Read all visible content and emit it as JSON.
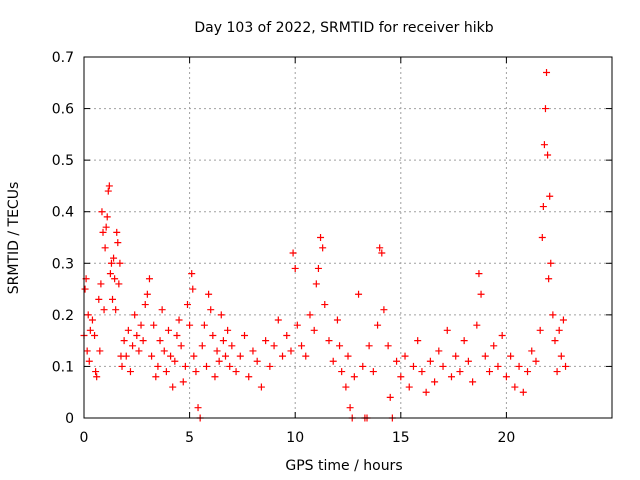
{
  "chart_data": {
    "type": "scatter",
    "title": "Day 103 of 2022, SRMTID for receiver hikb",
    "xlabel": "GPS time / hours",
    "ylabel": "SRMTID / TECUs",
    "xlim": [
      0,
      25
    ],
    "ylim": [
      0,
      0.7
    ],
    "x_ticks": [
      0,
      5,
      10,
      15,
      20
    ],
    "x_tick_labels": [
      "0",
      "5",
      "10",
      "15",
      "20"
    ],
    "y_ticks": [
      0,
      0.1,
      0.2,
      0.3,
      0.4,
      0.5,
      0.6,
      0.7
    ],
    "y_tick_labels": [
      "0",
      "0.1",
      "0.2",
      "0.3",
      "0.4",
      "0.5",
      "0.6",
      "0.7"
    ],
    "grid": true,
    "marker": "+",
    "colors": {
      "points": "#ff0000",
      "grid": "#a0a0a0",
      "axes": "#000000"
    },
    "series": [
      {
        "name": "SRMTID",
        "points": [
          [
            0.0,
            0.16
          ],
          [
            0.05,
            0.25
          ],
          [
            0.1,
            0.27
          ],
          [
            0.15,
            0.13
          ],
          [
            0.2,
            0.2
          ],
          [
            0.25,
            0.11
          ],
          [
            0.3,
            0.17
          ],
          [
            0.4,
            0.19
          ],
          [
            0.5,
            0.16
          ],
          [
            0.55,
            0.09
          ],
          [
            0.6,
            0.08
          ],
          [
            0.7,
            0.23
          ],
          [
            0.75,
            0.13
          ],
          [
            0.8,
            0.26
          ],
          [
            0.85,
            0.4
          ],
          [
            0.9,
            0.36
          ],
          [
            0.95,
            0.21
          ],
          [
            1.0,
            0.33
          ],
          [
            1.05,
            0.37
          ],
          [
            1.1,
            0.39
          ],
          [
            1.15,
            0.44
          ],
          [
            1.2,
            0.45
          ],
          [
            1.25,
            0.28
          ],
          [
            1.3,
            0.3
          ],
          [
            1.35,
            0.23
          ],
          [
            1.4,
            0.31
          ],
          [
            1.45,
            0.27
          ],
          [
            1.5,
            0.21
          ],
          [
            1.55,
            0.36
          ],
          [
            1.6,
            0.34
          ],
          [
            1.65,
            0.26
          ],
          [
            1.7,
            0.3
          ],
          [
            1.75,
            0.12
          ],
          [
            1.8,
            0.1
          ],
          [
            1.9,
            0.15
          ],
          [
            2.0,
            0.12
          ],
          [
            2.1,
            0.17
          ],
          [
            2.2,
            0.09
          ],
          [
            2.3,
            0.14
          ],
          [
            2.4,
            0.2
          ],
          [
            2.5,
            0.16
          ],
          [
            2.6,
            0.13
          ],
          [
            2.7,
            0.18
          ],
          [
            2.8,
            0.15
          ],
          [
            2.9,
            0.22
          ],
          [
            3.0,
            0.24
          ],
          [
            3.1,
            0.27
          ],
          [
            3.2,
            0.12
          ],
          [
            3.3,
            0.18
          ],
          [
            3.4,
            0.08
          ],
          [
            3.5,
            0.1
          ],
          [
            3.6,
            0.15
          ],
          [
            3.7,
            0.21
          ],
          [
            3.8,
            0.13
          ],
          [
            3.9,
            0.09
          ],
          [
            4.0,
            0.17
          ],
          [
            4.1,
            0.12
          ],
          [
            4.2,
            0.06
          ],
          [
            4.3,
            0.11
          ],
          [
            4.4,
            0.16
          ],
          [
            4.5,
            0.19
          ],
          [
            4.6,
            0.14
          ],
          [
            4.7,
            0.07
          ],
          [
            4.8,
            0.1
          ],
          [
            4.9,
            0.22
          ],
          [
            5.0,
            0.18
          ],
          [
            5.1,
            0.28
          ],
          [
            5.15,
            0.25
          ],
          [
            5.2,
            0.12
          ],
          [
            5.3,
            0.09
          ],
          [
            5.4,
            0.02
          ],
          [
            5.5,
            0.0
          ],
          [
            5.6,
            0.14
          ],
          [
            5.7,
            0.18
          ],
          [
            5.8,
            0.1
          ],
          [
            5.9,
            0.24
          ],
          [
            6.0,
            0.21
          ],
          [
            6.1,
            0.16
          ],
          [
            6.2,
            0.08
          ],
          [
            6.3,
            0.13
          ],
          [
            6.4,
            0.11
          ],
          [
            6.5,
            0.2
          ],
          [
            6.6,
            0.15
          ],
          [
            6.7,
            0.12
          ],
          [
            6.8,
            0.17
          ],
          [
            6.9,
            0.1
          ],
          [
            7.0,
            0.14
          ],
          [
            7.2,
            0.09
          ],
          [
            7.4,
            0.12
          ],
          [
            7.6,
            0.16
          ],
          [
            7.8,
            0.08
          ],
          [
            8.0,
            0.13
          ],
          [
            8.2,
            0.11
          ],
          [
            8.4,
            0.06
          ],
          [
            8.6,
            0.15
          ],
          [
            8.8,
            0.1
          ],
          [
            9.0,
            0.14
          ],
          [
            9.2,
            0.19
          ],
          [
            9.4,
            0.12
          ],
          [
            9.6,
            0.16
          ],
          [
            9.8,
            0.13
          ],
          [
            9.9,
            0.32
          ],
          [
            10.0,
            0.29
          ],
          [
            10.1,
            0.18
          ],
          [
            10.3,
            0.14
          ],
          [
            10.5,
            0.12
          ],
          [
            10.7,
            0.2
          ],
          [
            10.9,
            0.17
          ],
          [
            11.0,
            0.26
          ],
          [
            11.1,
            0.29
          ],
          [
            11.2,
            0.35
          ],
          [
            11.3,
            0.33
          ],
          [
            11.4,
            0.22
          ],
          [
            11.6,
            0.15
          ],
          [
            11.8,
            0.11
          ],
          [
            12.0,
            0.19
          ],
          [
            12.1,
            0.14
          ],
          [
            12.2,
            0.09
          ],
          [
            12.4,
            0.06
          ],
          [
            12.5,
            0.12
          ],
          [
            12.6,
            0.02
          ],
          [
            12.7,
            0.0
          ],
          [
            12.8,
            0.08
          ],
          [
            13.0,
            0.24
          ],
          [
            13.2,
            0.1
          ],
          [
            13.3,
            0.0
          ],
          [
            13.4,
            0.0
          ],
          [
            13.5,
            0.14
          ],
          [
            13.7,
            0.09
          ],
          [
            13.9,
            0.18
          ],
          [
            14.0,
            0.33
          ],
          [
            14.1,
            0.32
          ],
          [
            14.2,
            0.21
          ],
          [
            14.4,
            0.14
          ],
          [
            14.5,
            0.04
          ],
          [
            14.6,
            0.0
          ],
          [
            14.8,
            0.11
          ],
          [
            15.0,
            0.08
          ],
          [
            15.2,
            0.12
          ],
          [
            15.4,
            0.06
          ],
          [
            15.6,
            0.1
          ],
          [
            15.8,
            0.15
          ],
          [
            16.0,
            0.09
          ],
          [
            16.2,
            0.05
          ],
          [
            16.4,
            0.11
          ],
          [
            16.6,
            0.07
          ],
          [
            16.8,
            0.13
          ],
          [
            17.0,
            0.1
          ],
          [
            17.2,
            0.17
          ],
          [
            17.4,
            0.08
          ],
          [
            17.6,
            0.12
          ],
          [
            17.8,
            0.09
          ],
          [
            18.0,
            0.15
          ],
          [
            18.2,
            0.11
          ],
          [
            18.4,
            0.07
          ],
          [
            18.6,
            0.18
          ],
          [
            18.7,
            0.28
          ],
          [
            18.8,
            0.24
          ],
          [
            19.0,
            0.12
          ],
          [
            19.2,
            0.09
          ],
          [
            19.4,
            0.14
          ],
          [
            19.6,
            0.1
          ],
          [
            19.8,
            0.16
          ],
          [
            20.0,
            0.08
          ],
          [
            20.2,
            0.12
          ],
          [
            20.4,
            0.06
          ],
          [
            20.6,
            0.1
          ],
          [
            20.8,
            0.05
          ],
          [
            21.0,
            0.09
          ],
          [
            21.2,
            0.13
          ],
          [
            21.4,
            0.11
          ],
          [
            21.6,
            0.17
          ],
          [
            21.7,
            0.35
          ],
          [
            21.75,
            0.41
          ],
          [
            21.8,
            0.53
          ],
          [
            21.85,
            0.6
          ],
          [
            21.9,
            0.67
          ],
          [
            21.95,
            0.51
          ],
          [
            22.0,
            0.27
          ],
          [
            22.05,
            0.43
          ],
          [
            22.1,
            0.3
          ],
          [
            22.2,
            0.2
          ],
          [
            22.3,
            0.15
          ],
          [
            22.4,
            0.09
          ],
          [
            22.5,
            0.17
          ],
          [
            22.6,
            0.12
          ],
          [
            22.7,
            0.19
          ],
          [
            22.8,
            0.1
          ]
        ]
      }
    ]
  }
}
